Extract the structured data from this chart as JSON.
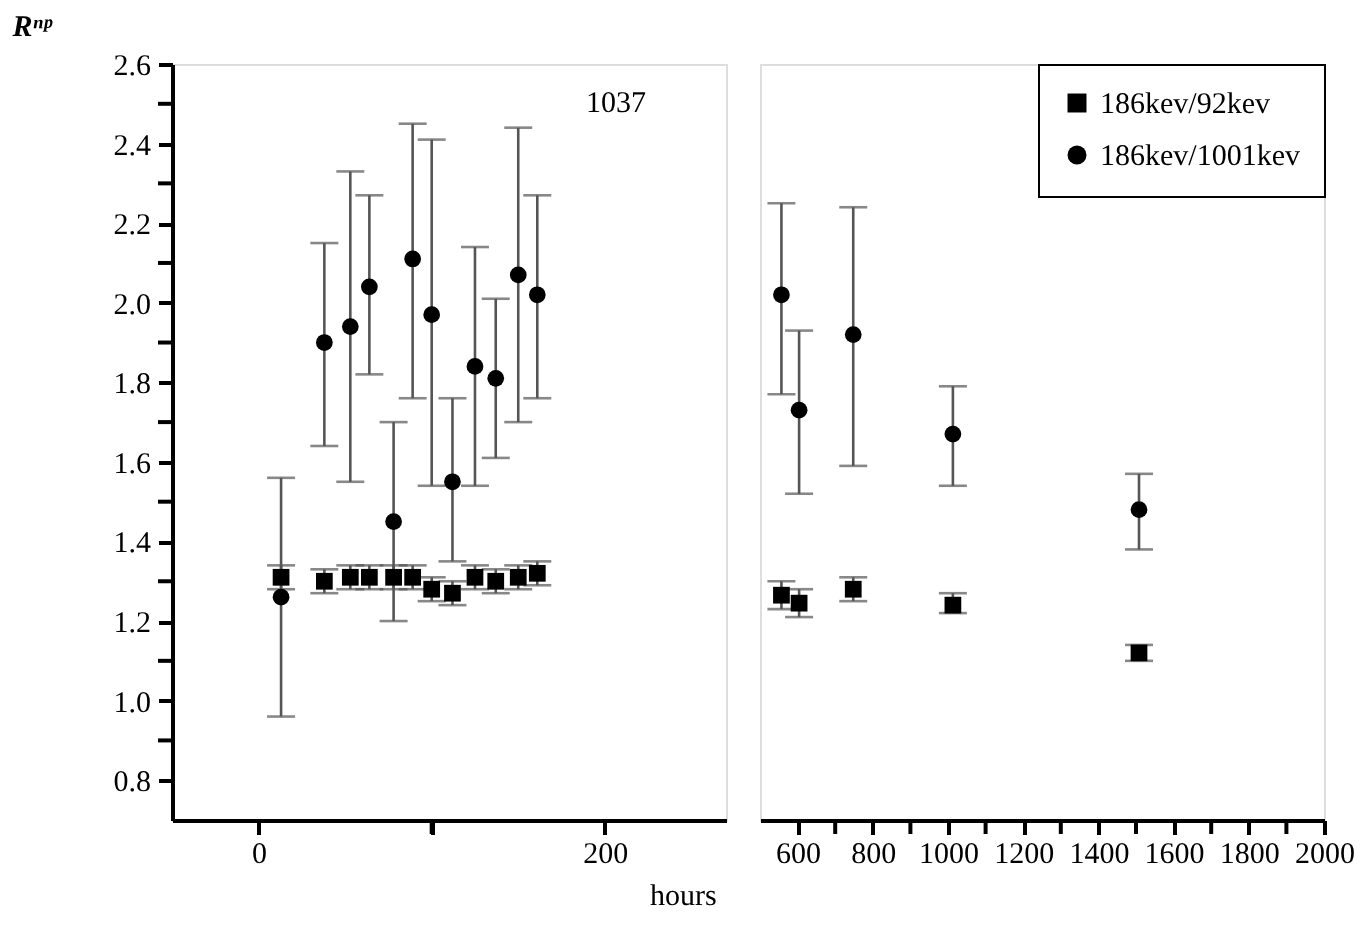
{
  "chart_data": [
    {
      "type": "scatter",
      "ylabel": "Rⁿᵖ",
      "xlabel": "hours",
      "annotations": [
        "1037"
      ],
      "x": [
        13,
        38,
        53,
        64,
        78,
        89,
        100,
        112,
        125,
        137,
        150,
        161
      ],
      "xlim": [
        -50,
        270
      ],
      "xticks": [
        0,
        {
          "value": 100,
          "label": null
        },
        200
      ],
      "ylim": [
        0.7,
        2.6
      ],
      "yticks": [
        0.8,
        {
          "value": 0.9,
          "label": null
        },
        {
          "value": 1.0,
          "label": "1.0"
        },
        {
          "value": 1.1,
          "label": null
        },
        1.2,
        {
          "value": 1.3,
          "label": null
        },
        1.4,
        {
          "value": 1.5,
          "label": null
        },
        1.6,
        {
          "value": 1.7,
          "label": null
        },
        1.8,
        {
          "value": 1.9,
          "label": null
        },
        {
          "value": 2.0,
          "label": "2.0"
        },
        {
          "value": 2.1,
          "label": null
        },
        2.2,
        {
          "value": 2.3,
          "label": null
        },
        2.4,
        {
          "value": 2.5,
          "label": null
        },
        2.6
      ],
      "grid": false,
      "series": [
        {
          "color": "#000000",
          "marker": "square",
          "values": [
            1.31,
            1.3,
            1.31,
            1.31,
            1.31,
            1.31,
            1.28,
            1.27,
            1.31,
            1.3,
            1.31,
            1.32
          ],
          "errors": [
            0.03,
            0.03,
            0.03,
            0.03,
            0.03,
            0.03,
            0.03,
            0.03,
            0.03,
            0.03,
            0.03,
            0.03
          ]
        },
        {
          "color": "#000000",
          "marker": "circle",
          "values": [
            1.26,
            1.9,
            1.94,
            2.04,
            1.45,
            2.11,
            1.97,
            1.55,
            1.84,
            1.81,
            2.07,
            2.02
          ],
          "errors": [
            [
              0.96,
              1.56
            ],
            [
              1.64,
              2.15
            ],
            [
              1.55,
              2.33
            ],
            [
              1.82,
              2.27
            ],
            [
              1.2,
              1.7
            ],
            [
              1.76,
              2.45
            ],
            [
              1.54,
              2.41
            ],
            [
              1.35,
              1.76
            ],
            [
              1.54,
              2.14
            ],
            [
              1.61,
              2.01
            ],
            [
              1.7,
              2.44
            ],
            [
              1.76,
              2.27
            ]
          ]
        }
      ]
    },
    {
      "type": "scatter",
      "x": [
        557,
        604,
        748,
        1013,
        1508
      ],
      "xlim": [
        500,
        2000
      ],
      "xticks": [
        600,
        {
          "value": 700,
          "label": null
        },
        800,
        {
          "value": 900,
          "label": null
        },
        1000,
        {
          "value": 1100,
          "label": null
        },
        1200,
        {
          "value": 1300,
          "label": null
        },
        1400,
        {
          "value": 1500,
          "label": null
        },
        1600,
        {
          "value": 1700,
          "label": null
        },
        1800,
        {
          "value": 1900,
          "label": null
        },
        2000
      ],
      "ylim": [
        0.7,
        2.6
      ],
      "tick_labels": "x",
      "grid": false,
      "legend": "top right",
      "series": [
        {
          "name": "186kev/92kev",
          "color": "#000000",
          "marker": "square",
          "values": [
            1.265,
            1.245,
            1.28,
            1.24,
            1.12
          ],
          "errors": [
            [
              1.23,
              1.3
            ],
            [
              1.21,
              1.28
            ],
            [
              1.25,
              1.31
            ],
            [
              1.22,
              1.27
            ],
            [
              1.1,
              1.14
            ]
          ]
        },
        {
          "name": "186kev/1001kev",
          "color": "#000000",
          "marker": "circle",
          "values": [
            2.02,
            1.73,
            1.92,
            1.67,
            1.48
          ],
          "errors": [
            [
              1.77,
              2.25
            ],
            [
              1.52,
              1.93
            ],
            [
              1.59,
              2.24
            ],
            [
              1.54,
              1.79
            ],
            [
              1.38,
              1.57
            ]
          ]
        }
      ]
    }
  ]
}
